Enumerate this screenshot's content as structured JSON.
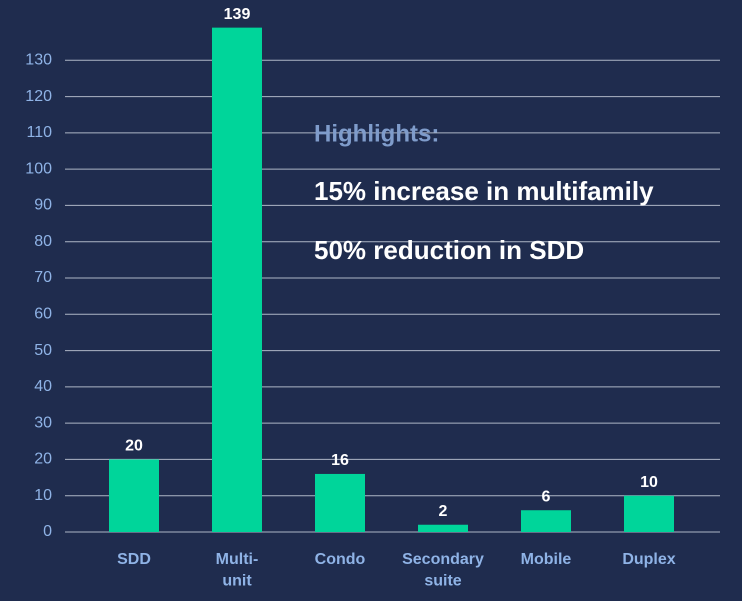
{
  "chart_data": {
    "type": "bar",
    "categories": [
      "SDD",
      "Multi-\nunit",
      "Condo",
      "Secondary\nsuite",
      "Mobile",
      "Duplex"
    ],
    "values": [
      20,
      139,
      16,
      2,
      6,
      10
    ],
    "color": "#00d59a",
    "ylim": [
      0,
      140
    ],
    "yticks": [
      0,
      10,
      20,
      30,
      40,
      50,
      60,
      70,
      80,
      90,
      100,
      110,
      120,
      130
    ],
    "grid": true,
    "annotations": [
      "Highlights:",
      "15% increase in multifamily",
      "50% reduction in SDD"
    ]
  }
}
